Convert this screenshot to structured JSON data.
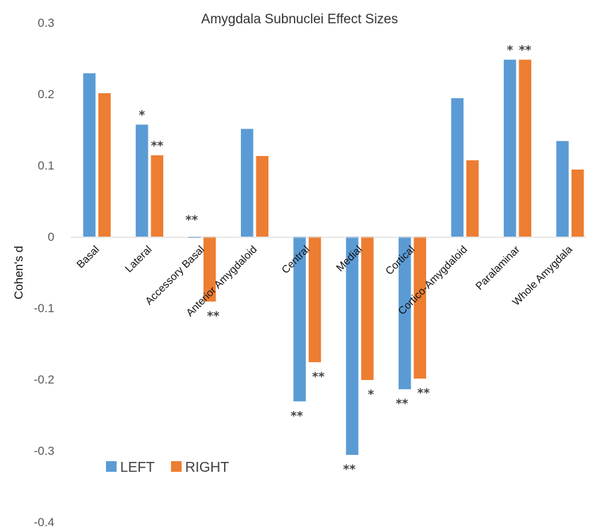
{
  "chart_data": {
    "type": "bar",
    "title": "Amygdala Subnuclei Effect Sizes",
    "ylabel": "Cohen's d",
    "xlabel": "",
    "ylim": [
      -0.4,
      0.3
    ],
    "yticks": [
      0.3,
      0.2,
      0.1,
      0,
      -0.1,
      -0.2,
      -0.3,
      -0.4
    ],
    "ytick_labels": [
      "0.3",
      "0.2",
      "0.1",
      "0",
      "-0.1",
      "-0.2",
      "-0.3",
      "-0.4"
    ],
    "grid": false,
    "legend_position": "bottom-left",
    "categories": [
      "Basal",
      "Lateral",
      "Accessory Basal",
      "Anterior Amygdaloid",
      "Central",
      "Medial",
      "Cortical",
      "Cortico-Amygdaloid",
      "Paralaminar",
      "Whole Amygdala"
    ],
    "series": [
      {
        "name": "LEFT",
        "color": "#5B9BD5",
        "values": [
          0.229,
          0.157,
          -0.002,
          0.151,
          -0.231,
          -0.306,
          -0.214,
          0.194,
          0.248,
          0.134
        ],
        "annotations": [
          "",
          "*",
          "**",
          "",
          "**",
          "**",
          "**",
          "",
          "*",
          ""
        ]
      },
      {
        "name": "RIGHT",
        "color": "#ED7D31",
        "values": [
          0.201,
          0.114,
          -0.091,
          0.113,
          -0.176,
          -0.201,
          -0.199,
          0.107,
          0.248,
          0.094
        ],
        "annotations": [
          "",
          "**",
          "**",
          "",
          "**",
          "*",
          "**",
          "",
          "**",
          ""
        ]
      }
    ]
  }
}
